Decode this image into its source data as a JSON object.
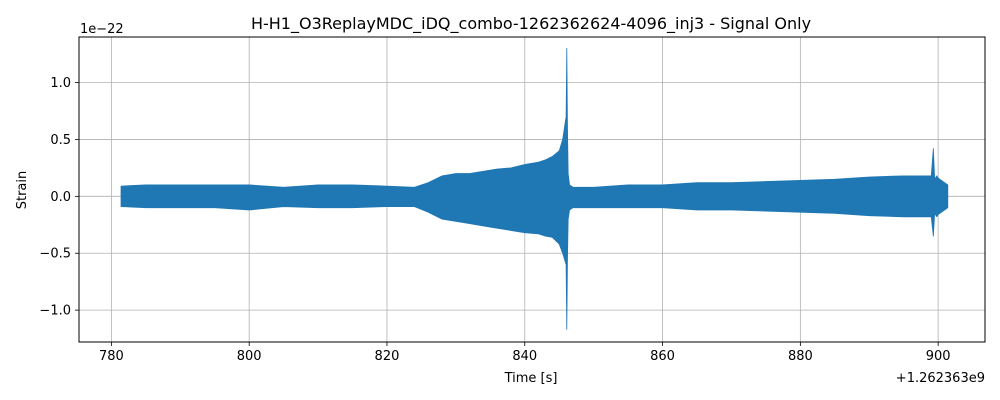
{
  "chart_data": {
    "type": "line",
    "title": "H-H1_O3ReplayMDC_iDQ_combo-1262362624-4096_inj3 - Signal Only",
    "xlabel": "Time [s]",
    "ylabel": "Strain",
    "x_offset_label": "+1.262363e9",
    "y_scale_label": "1e−22",
    "xlim": [
      775.3,
      906.8
    ],
    "ylim": [
      -1.28,
      1.4
    ],
    "x_ticks": [
      780,
      800,
      820,
      840,
      860,
      880,
      900
    ],
    "x_tick_labels": [
      "780",
      "800",
      "820",
      "840",
      "860",
      "880",
      "900"
    ],
    "y_ticks": [
      -1.0,
      -0.5,
      0.0,
      0.5,
      1.0
    ],
    "y_tick_labels": [
      "−1.0",
      "−0.5",
      "0.0",
      "0.5",
      "1.0"
    ],
    "grid": true,
    "series_color": "#1f77b4",
    "series": [
      {
        "x": [
          781.4,
          785,
          790,
          795,
          800,
          805,
          810,
          815,
          820,
          824,
          826,
          828,
          830,
          832,
          834,
          836,
          838,
          840,
          842,
          843,
          844,
          845,
          845.5,
          846,
          846.1,
          846.2,
          846.3,
          846.5,
          847,
          850,
          855,
          860,
          865,
          870,
          875,
          880,
          885,
          890,
          895,
          899,
          899.3,
          899.5,
          899.8,
          900,
          901.4
        ],
        "upper": [
          0.09,
          0.1,
          0.1,
          0.1,
          0.1,
          0.08,
          0.1,
          0.1,
          0.09,
          0.08,
          0.12,
          0.18,
          0.2,
          0.2,
          0.22,
          0.24,
          0.25,
          0.28,
          0.3,
          0.32,
          0.35,
          0.4,
          0.5,
          0.7,
          1.3,
          0.6,
          0.2,
          0.1,
          0.08,
          0.08,
          0.1,
          0.1,
          0.12,
          0.12,
          0.13,
          0.14,
          0.15,
          0.17,
          0.18,
          0.18,
          0.42,
          0.15,
          0.18,
          0.16,
          0.1
        ],
        "lower": [
          -0.09,
          -0.1,
          -0.1,
          -0.1,
          -0.12,
          -0.09,
          -0.1,
          -0.1,
          -0.09,
          -0.09,
          -0.14,
          -0.2,
          -0.22,
          -0.24,
          -0.26,
          -0.28,
          -0.3,
          -0.32,
          -0.33,
          -0.35,
          -0.36,
          -0.42,
          -0.5,
          -0.6,
          -1.17,
          -0.55,
          -0.2,
          -0.12,
          -0.1,
          -0.1,
          -0.1,
          -0.1,
          -0.12,
          -0.12,
          -0.13,
          -0.14,
          -0.15,
          -0.17,
          -0.18,
          -0.18,
          -0.35,
          -0.15,
          -0.18,
          -0.16,
          -0.1
        ]
      }
    ]
  }
}
